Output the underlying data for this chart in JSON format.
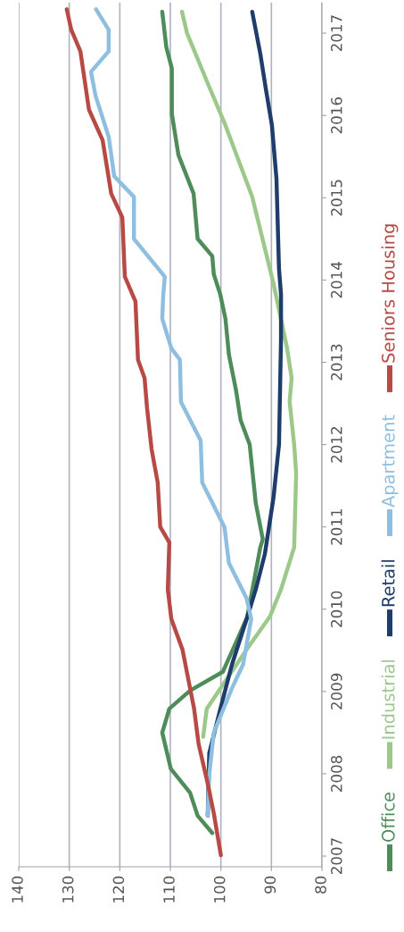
{
  "chart_data": {
    "type": "line",
    "xlim": [
      140,
      80
    ],
    "xticks": [
      80,
      90,
      100,
      110,
      120,
      130,
      140
    ],
    "ylim": [
      2006.87,
      2017.37
    ],
    "yticks": [
      2007,
      2008,
      2009,
      2010,
      2011,
      2012,
      2013,
      2014,
      2015,
      2016,
      2017
    ],
    "grid": "x",
    "legend": "bottom",
    "marker": "none",
    "line_style": "solid",
    "series": [
      {
        "name": "Office",
        "color": "#4e8c5a",
        "values": [
          2007.28,
          2007.49,
          2007.77,
          2008.06,
          2008.5,
          2008.79,
          2009.01,
          2009.24,
          2009.9,
          2010.75,
          2010.85,
          2011.29,
          2012.0,
          2012.3,
          2012.66,
          2013.09,
          2013.53,
          2013.82,
          2014.07,
          2014.29,
          2014.5,
          2015.05,
          2015.52,
          2016.02,
          2016.57,
          2016.83,
          2017.26
        ],
        "x": [
          101.7,
          104.6,
          106.1,
          109.9,
          111.6,
          110.2,
          106.1,
          99.6,
          94.8,
          92.2,
          91.7,
          93.1,
          94.3,
          96.1,
          97.0,
          98.4,
          99.1,
          100.1,
          101.4,
          101.7,
          104.6,
          105.4,
          108.4,
          109.7,
          109.7,
          110.8,
          111.6
        ]
      },
      {
        "name": "Industrial",
        "color": "#9cc98a",
        "values": [
          2008.45,
          2008.79,
          2009.51,
          2009.91,
          2010.24,
          2010.75,
          2011.65,
          2012.0,
          2012.52,
          2012.81,
          2013.17,
          2013.96,
          2015.01,
          2015.88,
          2016.39,
          2017.0,
          2017.26
        ],
        "x": [
          103.5,
          102.8,
          94.9,
          90.3,
          88.1,
          85.5,
          85.1,
          85.5,
          86.4,
          86.0,
          86.9,
          89.6,
          93.8,
          99.1,
          102.6,
          106.7,
          107.7
        ]
      },
      {
        "name": "Retail",
        "color": "#1f3d6b",
        "values": [
          2007.49,
          2008.25,
          2008.79,
          2009.33,
          2009.88,
          2010.24,
          2010.67,
          2011.35,
          2012.0,
          2013.28,
          2013.82,
          2014.14,
          2015.23,
          2015.88,
          2016.32,
          2016.75,
          2017.26
        ],
        "x": [
          102.6,
          102.3,
          100.1,
          97.8,
          94.9,
          93.1,
          91.3,
          89.6,
          88.5,
          88.1,
          88.1,
          88.5,
          89.0,
          89.9,
          91.1,
          92.2,
          93.8
        ]
      },
      {
        "name": "Apartment",
        "color": "#8fbfe0",
        "values": [
          2007.49,
          2007.99,
          2008.5,
          2009.04,
          2009.33,
          2009.88,
          2010.13,
          2010.56,
          2011.0,
          2011.54,
          2012.05,
          2012.52,
          2013.03,
          2013.17,
          2013.53,
          2013.82,
          2014.04,
          2014.5,
          2015.01,
          2015.26,
          2015.74,
          2016.24,
          2016.53,
          2016.78,
          2017.04,
          2017.29
        ],
        "x": [
          102.6,
          102.3,
          101.4,
          97.8,
          95.6,
          94.0,
          94.9,
          98.4,
          99.3,
          103.7,
          104.0,
          107.9,
          108.1,
          109.8,
          111.6,
          111.4,
          111.1,
          117.2,
          117.2,
          121.1,
          122.2,
          124.8,
          125.7,
          122.2,
          122.2,
          124.7
        ]
      },
      {
        "name": "Seniors Housing",
        "color": "#b84a45",
        "values": [
          2007.01,
          2007.52,
          2007.88,
          2008.36,
          2008.79,
          2009.51,
          2009.88,
          2010.24,
          2010.81,
          2011.0,
          2011.54,
          2011.94,
          2012.44,
          2012.81,
          2013.03,
          2013.74,
          2014.04,
          2014.76,
          2015.05,
          2015.7,
          2016.07,
          2016.78,
          2017.04,
          2017.29
        ],
        "x": [
          100.0,
          101.4,
          102.6,
          104.4,
          105.3,
          107.6,
          109.8,
          110.5,
          110.2,
          112.0,
          112.5,
          113.7,
          114.6,
          115.1,
          116.4,
          116.9,
          119.0,
          119.5,
          121.7,
          123.4,
          126.1,
          127.8,
          129.6,
          130.5
        ]
      }
    ]
  }
}
